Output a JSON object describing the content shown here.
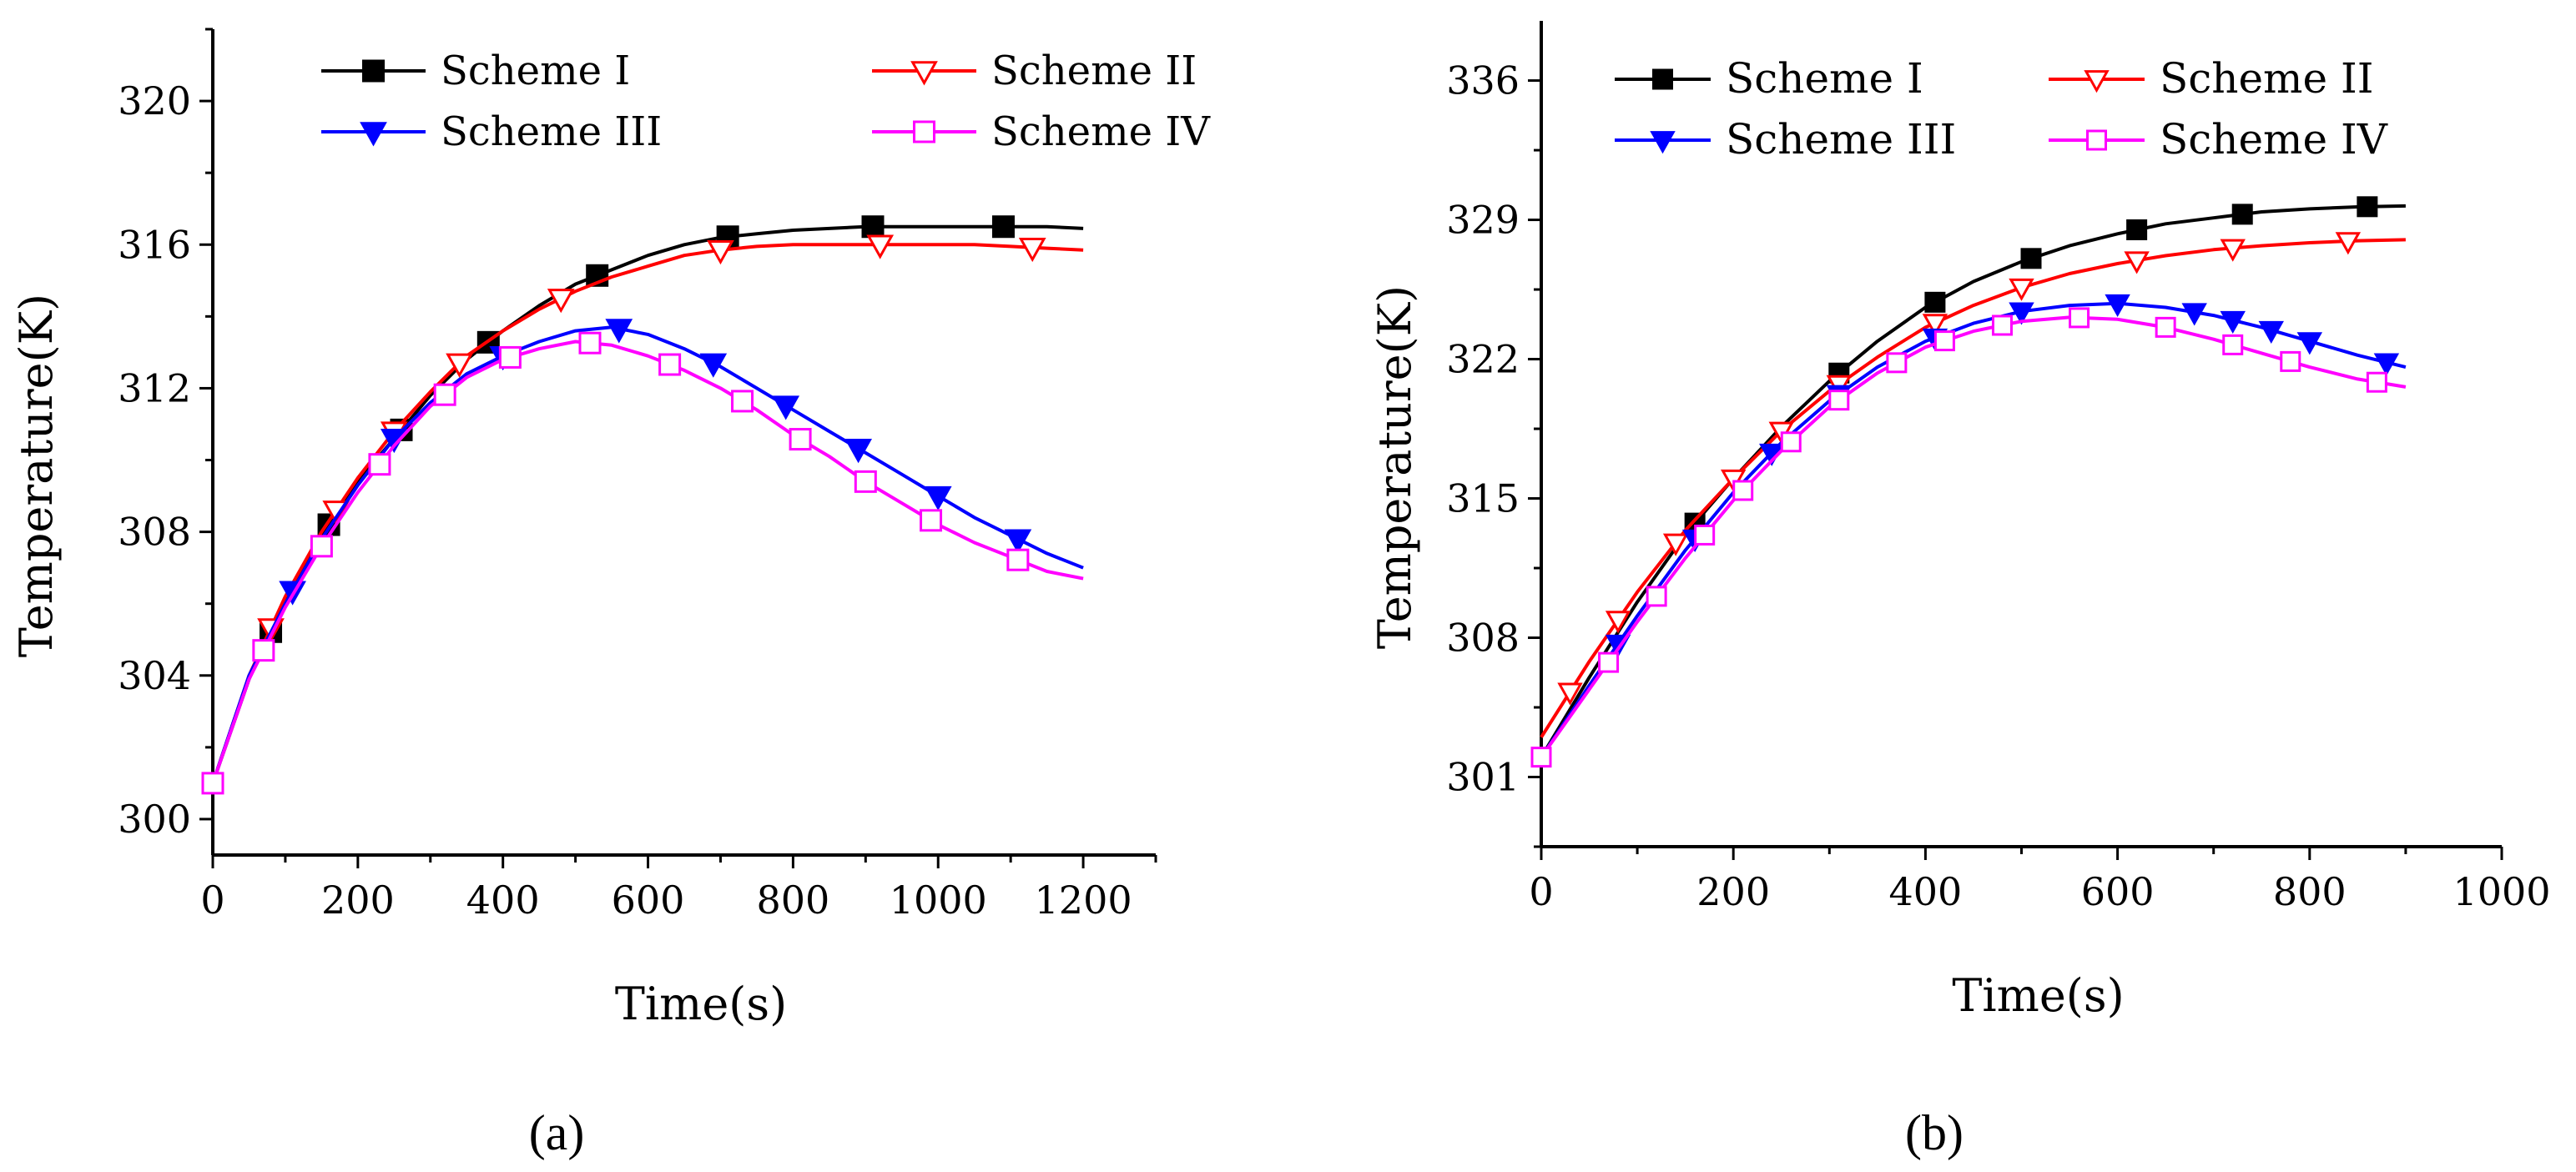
{
  "chart_data": [
    {
      "type": "line",
      "panel_label": "(a)",
      "xlabel": "Time(s)",
      "ylabel": "Temperature(K)",
      "xlim": [
        0,
        1300
      ],
      "ylim": [
        299,
        322
      ],
      "xticks": [
        0,
        200,
        400,
        600,
        800,
        1000,
        1200
      ],
      "yticks": [
        300,
        304,
        308,
        312,
        316,
        320
      ],
      "legend_position": "top",
      "series": [
        {
          "name": "Scheme I",
          "color": "#000000",
          "marker": "square-filled",
          "x": [
            0,
            50,
            100,
            150,
            200,
            250,
            300,
            350,
            400,
            450,
            500,
            550,
            600,
            650,
            700,
            750,
            800,
            850,
            900,
            950,
            1000,
            1050,
            1100,
            1150,
            1200
          ],
          "y": [
            301.0,
            303.9,
            306.1,
            307.9,
            309.4,
            310.6,
            311.8,
            312.8,
            313.6,
            314.3,
            314.9,
            315.3,
            315.7,
            316.0,
            316.2,
            316.3,
            316.4,
            316.45,
            316.5,
            316.5,
            316.5,
            316.5,
            316.5,
            316.5,
            316.45
          ],
          "marker_x": [
            80,
            160,
            260,
            380,
            530,
            710,
            910,
            1090
          ]
        },
        {
          "name": "Scheme II",
          "color": "#ff0000",
          "marker": "triangle-down-open",
          "x": [
            0,
            50,
            100,
            150,
            200,
            250,
            300,
            350,
            400,
            450,
            500,
            550,
            600,
            650,
            700,
            750,
            800,
            850,
            900,
            950,
            1000,
            1050,
            1100,
            1150,
            1200
          ],
          "y": [
            301.0,
            304.0,
            306.2,
            308.0,
            309.5,
            310.8,
            311.9,
            312.9,
            313.6,
            314.2,
            314.7,
            315.1,
            315.4,
            315.7,
            315.85,
            315.95,
            316.0,
            316.0,
            316.0,
            316.0,
            316.0,
            316.0,
            315.95,
            315.9,
            315.85
          ],
          "marker_x": [
            80,
            170,
            250,
            340,
            480,
            700,
            920,
            1130
          ]
        },
        {
          "name": "Scheme III",
          "color": "#0000ff",
          "marker": "triangle-down-filled",
          "x": [
            0,
            50,
            100,
            150,
            200,
            250,
            300,
            350,
            400,
            450,
            500,
            550,
            600,
            650,
            700,
            750,
            800,
            850,
            900,
            950,
            1000,
            1050,
            1100,
            1150,
            1200
          ],
          "y": [
            301.0,
            304.0,
            306.0,
            307.8,
            309.3,
            310.6,
            311.6,
            312.4,
            312.9,
            313.3,
            313.6,
            313.7,
            313.5,
            313.1,
            312.6,
            312.0,
            311.4,
            310.8,
            310.2,
            309.6,
            309.0,
            308.4,
            307.9,
            307.4,
            307.0
          ],
          "marker_x": [
            110,
            250,
            400,
            560,
            690,
            790,
            890,
            1000,
            1110
          ]
        },
        {
          "name": "Scheme IV",
          "color": "#ff00ff",
          "marker": "square-open",
          "x": [
            0,
            50,
            100,
            150,
            200,
            250,
            300,
            350,
            400,
            450,
            500,
            550,
            600,
            650,
            700,
            750,
            800,
            850,
            900,
            950,
            1000,
            1050,
            1100,
            1150,
            1200
          ],
          "y": [
            301.0,
            303.9,
            305.9,
            307.6,
            309.1,
            310.4,
            311.5,
            312.3,
            312.8,
            313.1,
            313.3,
            313.2,
            312.9,
            312.5,
            312.0,
            311.4,
            310.7,
            310.1,
            309.4,
            308.8,
            308.2,
            307.7,
            307.3,
            306.9,
            306.7
          ],
          "marker_x": [
            0,
            70,
            150,
            230,
            320,
            410,
            520,
            630,
            730,
            810,
            900,
            990,
            1110
          ]
        }
      ]
    },
    {
      "type": "line",
      "panel_label": "(b)",
      "xlabel": "Time(s)",
      "ylabel": "Temperature(K)",
      "xlim": [
        0,
        1000
      ],
      "ylim": [
        297.5,
        339
      ],
      "xticks": [
        0,
        200,
        400,
        600,
        800,
        1000
      ],
      "yticks": [
        301,
        308,
        315,
        322,
        329,
        336
      ],
      "legend_position": "top",
      "series": [
        {
          "name": "Scheme I",
          "color": "#000000",
          "marker": "square-filled",
          "x": [
            0,
            50,
            100,
            150,
            200,
            250,
            300,
            350,
            400,
            450,
            500,
            550,
            600,
            650,
            700,
            750,
            800,
            850,
            900
          ],
          "y": [
            302.0,
            306.0,
            309.8,
            313.2,
            316.0,
            318.6,
            320.9,
            322.9,
            324.6,
            325.9,
            326.9,
            327.7,
            328.3,
            328.8,
            329.1,
            329.4,
            329.55,
            329.65,
            329.7
          ],
          "marker_x": [
            160,
            310,
            410,
            510,
            620,
            730,
            860
          ]
        },
        {
          "name": "Scheme II",
          "color": "#ff0000",
          "marker": "triangle-down-open",
          "x": [
            0,
            50,
            100,
            150,
            200,
            250,
            300,
            350,
            400,
            450,
            500,
            550,
            600,
            650,
            700,
            750,
            800,
            850,
            900
          ],
          "y": [
            303.0,
            306.8,
            310.3,
            313.4,
            316.0,
            318.4,
            320.4,
            322.1,
            323.6,
            324.7,
            325.6,
            326.3,
            326.8,
            327.2,
            327.5,
            327.7,
            327.85,
            327.95,
            328.0
          ],
          "marker_x": [
            30,
            80,
            140,
            200,
            250,
            310,
            410,
            500,
            620,
            720,
            840
          ]
        },
        {
          "name": "Scheme III",
          "color": "#0000ff",
          "marker": "triangle-down-filled",
          "x": [
            0,
            50,
            100,
            150,
            200,
            250,
            300,
            350,
            400,
            450,
            500,
            550,
            600,
            650,
            700,
            750,
            800,
            850,
            900
          ],
          "y": [
            302.0,
            305.6,
            309.1,
            312.4,
            315.3,
            317.8,
            319.9,
            321.6,
            322.9,
            323.8,
            324.4,
            324.7,
            324.8,
            324.6,
            324.2,
            323.6,
            322.9,
            322.2,
            321.6
          ],
          "marker_x": [
            80,
            160,
            240,
            310,
            410,
            500,
            600,
            680,
            720,
            760,
            800,
            880
          ]
        },
        {
          "name": "Scheme IV",
          "color": "#ff00ff",
          "marker": "square-open",
          "x": [
            0,
            50,
            100,
            150,
            200,
            250,
            300,
            350,
            400,
            450,
            500,
            550,
            600,
            650,
            700,
            750,
            800,
            850,
            900
          ],
          "y": [
            302.0,
            305.4,
            308.8,
            312.0,
            314.9,
            317.4,
            319.6,
            321.3,
            322.6,
            323.4,
            323.9,
            324.1,
            324.0,
            323.6,
            323.0,
            322.3,
            321.6,
            321.0,
            320.6
          ],
          "marker_x": [
            0,
            70,
            120,
            170,
            210,
            260,
            310,
            370,
            420,
            480,
            560,
            650,
            720,
            780,
            870
          ]
        }
      ]
    }
  ]
}
